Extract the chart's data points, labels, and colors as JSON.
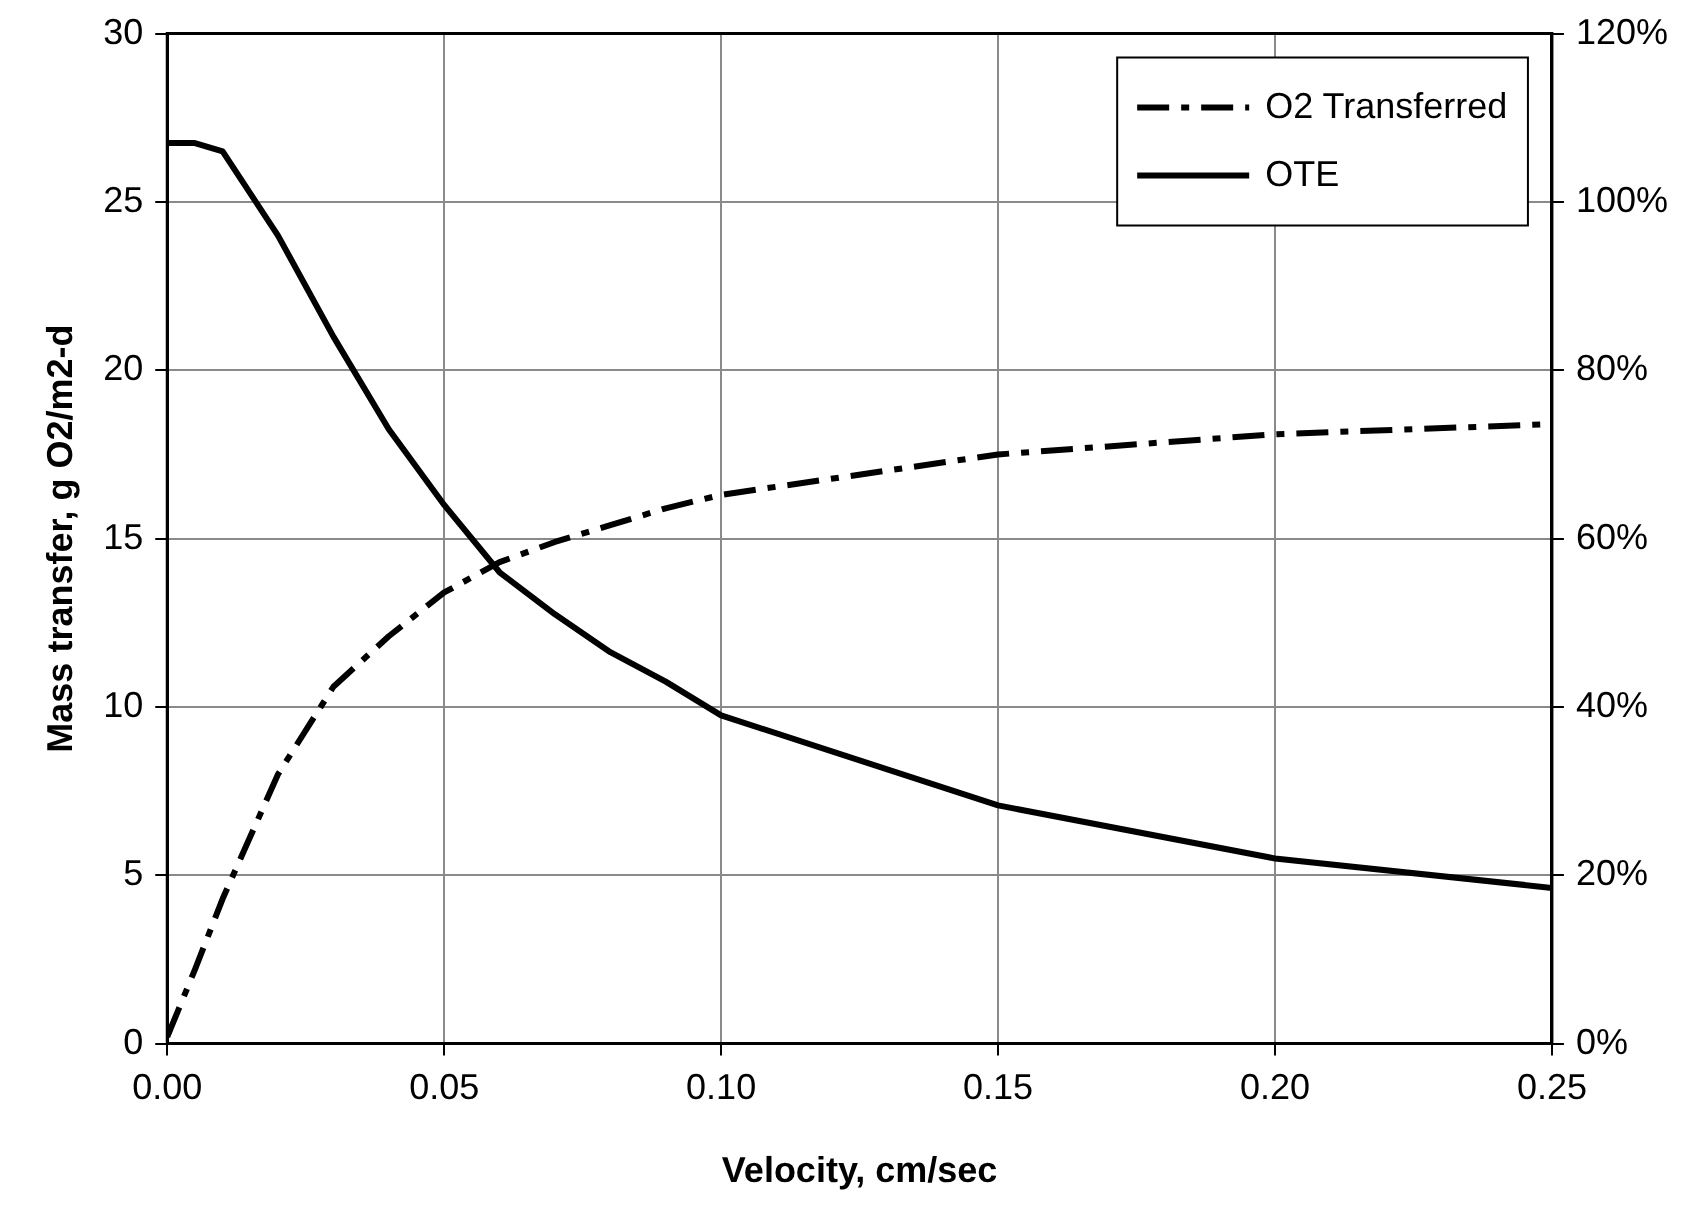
{
  "chart_data": {
    "type": "line",
    "xlabel": "Velocity, cm/sec",
    "ylabel": "Mass transfer, g O2/m2-d",
    "x": [
      0,
      0.005,
      0.01,
      0.02,
      0.03,
      0.04,
      0.05,
      0.06,
      0.07,
      0.08,
      0.09,
      0.1,
      0.15,
      0.2,
      0.25
    ],
    "series": [
      {
        "name": "O2 Transferred",
        "color": "#000000",
        "line_style": "dashed",
        "values": [
          0.2,
          2.2,
          4.3,
          8.0,
          10.6,
          12.1,
          13.4,
          14.3,
          14.9,
          15.4,
          15.9,
          16.3,
          17.5,
          18.1,
          18.4
        ]
      },
      {
        "name": "OTE",
        "color": "#000000",
        "line_style": "solid",
        "axis": "y2",
        "values": [
          107,
          107,
          106,
          96,
          84,
          73,
          64,
          56,
          51,
          46.5,
          43,
          39,
          28.3,
          22,
          18.5
        ]
      }
    ],
    "xlim": [
      0,
      0.25
    ],
    "xticks": [
      {
        "value": 0,
        "label": "0.00"
      },
      {
        "value": 0.05,
        "label": "0.05"
      },
      {
        "value": 0.1,
        "label": "0.10"
      },
      {
        "value": 0.15,
        "label": "0.15"
      },
      {
        "value": 0.2,
        "label": "0.20"
      },
      {
        "value": 0.25,
        "label": "0.25"
      }
    ],
    "ylim": [
      0,
      30
    ],
    "yticks": [
      0,
      5,
      10,
      15,
      20,
      25,
      30
    ],
    "y2lim": [
      0,
      120
    ],
    "y2ticks": [
      {
        "value": 0,
        "label": "0%"
      },
      {
        "value": 20,
        "label": "20%"
      },
      {
        "value": 40,
        "label": "40%"
      },
      {
        "value": 60,
        "label": "60%"
      },
      {
        "value": 80,
        "label": "80%"
      },
      {
        "value": 100,
        "label": "100%"
      },
      {
        "value": 120,
        "label": "120%"
      }
    ],
    "grid": true,
    "legend": "top right",
    "marker": "none"
  }
}
